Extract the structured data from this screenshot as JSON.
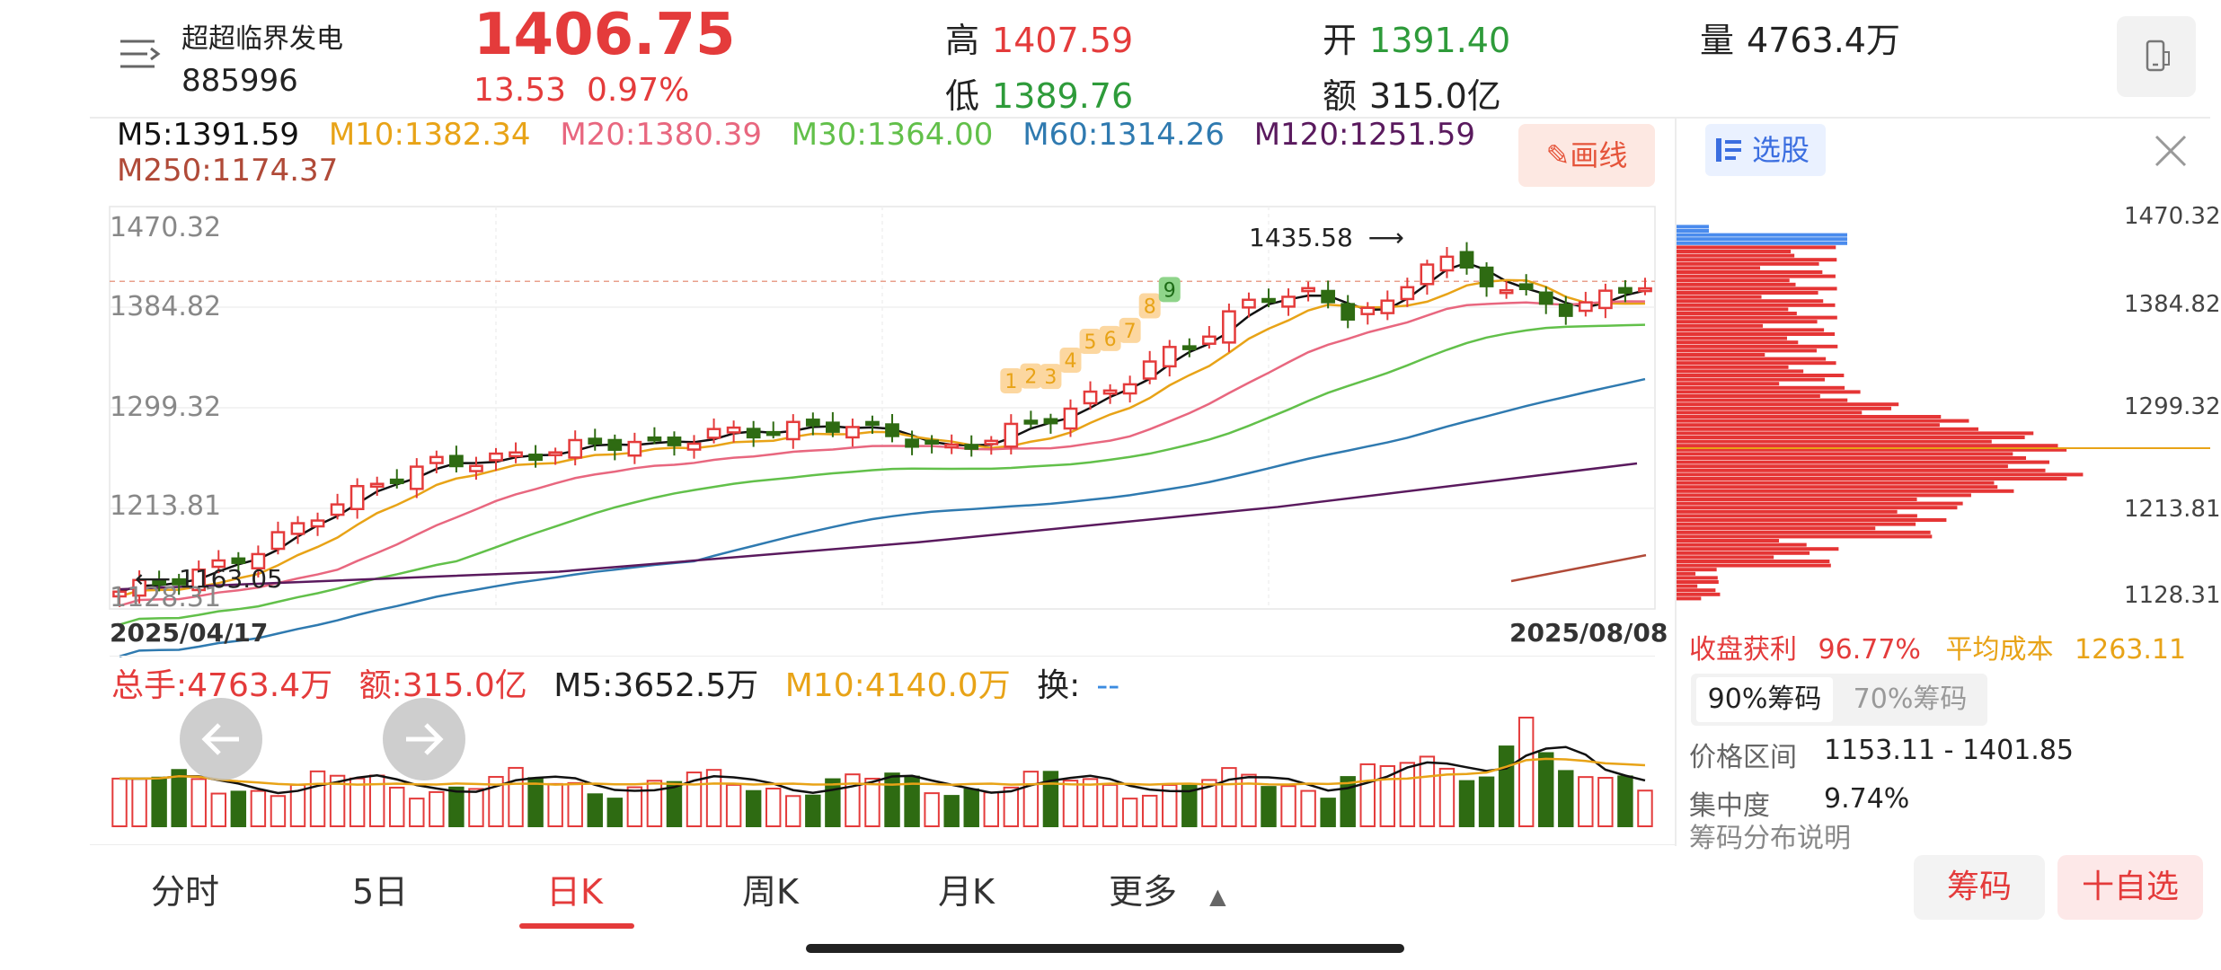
{
  "header": {
    "name": "超超临界发电",
    "code": "885996",
    "price": "1406.75",
    "change": "13.53",
    "change_pct": "0.97%",
    "high_label": "高",
    "high": "1407.59",
    "low_label": "低",
    "low": "1389.76",
    "open_label": "开",
    "open": "1391.40",
    "amount_label": "额",
    "amount": "315.0亿",
    "volume_label": "量",
    "volume": "4763.4万"
  },
  "ma": {
    "m5": "M5:1391.59",
    "m10": "M10:1382.34",
    "m20": "M20:1380.39",
    "m30": "M30:1364.00",
    "m60": "M60:1314.26",
    "m120": "M120:1251.59",
    "m250": "M250:1174.37",
    "draw_button": "画线",
    "colors": {
      "m5": "#111111",
      "m10": "#e8a317",
      "m20": "#e8677f",
      "m30": "#62c04a",
      "m60": "#2f7ab0",
      "m120": "#5a1a5e",
      "m250": "#b04a38"
    }
  },
  "chart": {
    "y_labels": [
      "1470.32",
      "1384.82",
      "1299.32",
      "1213.81",
      "1128.31"
    ],
    "start_date": "2025/04/17",
    "end_date": "2025/08/08",
    "high_mark": "1435.58",
    "low_mark": "1163.05",
    "td_count": [
      "1",
      "2",
      "3",
      "4",
      "5",
      "6",
      "7",
      "8",
      "9"
    ]
  },
  "volume": {
    "total": "总手:4763.4万",
    "amount": "额:315.0亿",
    "m5": "M5:3652.5万",
    "m10": "M10:4140.0万",
    "turnover_label": "换:",
    "turnover_value": "--"
  },
  "tabs": [
    "分时",
    "5日",
    "日K",
    "周K",
    "月K",
    "更多"
  ],
  "active_tab": "日K",
  "buttons": {
    "chips": "筹码",
    "fav": "十自选"
  },
  "right_panel": {
    "xuangu": "选股",
    "y_labels": [
      "1470.32",
      "1384.82",
      "1299.32",
      "1213.81",
      "1128.31"
    ],
    "profit_label": "收盘获利",
    "profit": "96.77%",
    "avg_label": "平均成本",
    "avg": "1263.11",
    "tab90": "90%筹码",
    "tab70": "70%筹码",
    "range_label": "价格区间",
    "range": "1153.11 - 1401.85",
    "conc_label": "集中度",
    "conc": "9.74%",
    "note": "筹码分布说明"
  },
  "colors": {
    "up": "#e43b3b",
    "down": "#2e6b12",
    "accent": "#e43b3b"
  }
}
